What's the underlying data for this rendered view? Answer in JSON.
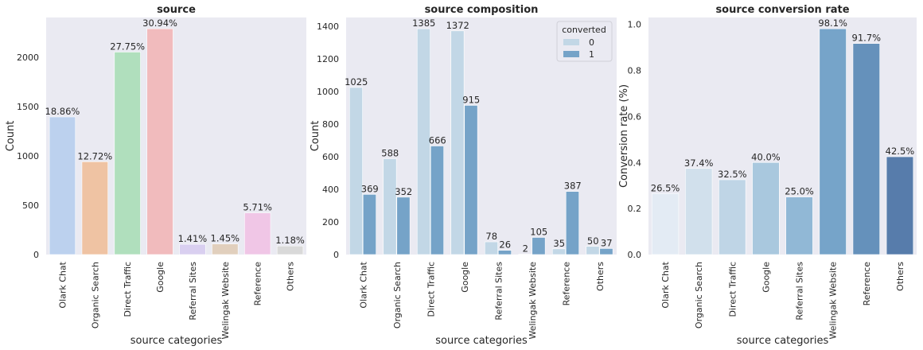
{
  "chart_data": [
    {
      "type": "bar",
      "title": "source",
      "xlabel": "source categories",
      "ylabel": "Count",
      "categories": [
        "Olark Chat",
        "Organic Search",
        "Direct Traffic",
        "Google",
        "Referral Sites",
        "Welingak Website",
        "Reference",
        "Others"
      ],
      "values": [
        1394,
        940,
        2051,
        2287,
        104,
        107,
        422,
        87
      ],
      "data_labels": [
        "18.86%",
        "12.72%",
        "27.75%",
        "30.94%",
        "1.41%",
        "1.45%",
        "5.71%",
        "1.18%"
      ],
      "colors": [
        "#bcd1ee",
        "#efc3a3",
        "#b0dfbd",
        "#f1bbbd",
        "#d9cff0",
        "#e1cfbd",
        "#f0c6e6",
        "#d9d9d9"
      ],
      "ylim": [
        0,
        2401
      ],
      "yticks": [
        0,
        500,
        1000,
        1500,
        2000
      ],
      "grid": false
    },
    {
      "type": "bar",
      "title": "source composition",
      "xlabel": "source categories",
      "ylabel": "Count",
      "categories": [
        "Olark Chat",
        "Organic Search",
        "Direct Traffic",
        "Google",
        "Referral Sites",
        "Welingak Website",
        "Reference",
        "Others"
      ],
      "series": [
        {
          "name": "0",
          "values": [
            1025,
            588,
            1385,
            1372,
            78,
            2,
            35,
            50
          ],
          "color": "#c2d7e6"
        },
        {
          "name": "1",
          "values": [
            369,
            352,
            666,
            915,
            26,
            105,
            387,
            37
          ],
          "color": "#75a3c8"
        }
      ],
      "legend": {
        "title": "converted",
        "placement": "top-right"
      },
      "ylim": [
        0,
        1454
      ],
      "yticks": [
        0,
        200,
        400,
        600,
        800,
        1000,
        1200,
        1400
      ],
      "grid": false
    },
    {
      "type": "bar",
      "title": "source conversion rate",
      "xlabel": "source categories",
      "ylabel": "Conversion rate (%)",
      "categories": [
        "Olark Chat",
        "Organic Search",
        "Direct Traffic",
        "Google",
        "Referral Sites",
        "Welingak Website",
        "Reference",
        "Others"
      ],
      "values": [
        0.265,
        0.374,
        0.325,
        0.4,
        0.25,
        0.981,
        0.917,
        0.425
      ],
      "data_labels": [
        "26.5%",
        "37.4%",
        "32.5%",
        "40.0%",
        "25.0%",
        "98.1%",
        "91.7%",
        "42.5%"
      ],
      "colors": [
        "#e3ebf4",
        "#d1e0ec",
        "#bfd5e6",
        "#a9c8de",
        "#91b8d6",
        "#76a4c9",
        "#6591bb",
        "#577cab"
      ],
      "ylim": [
        0,
        1.03
      ],
      "yticks": [
        "0.0",
        "0.2",
        "0.4",
        "0.6",
        "0.8",
        "1.0"
      ],
      "grid": false
    }
  ]
}
